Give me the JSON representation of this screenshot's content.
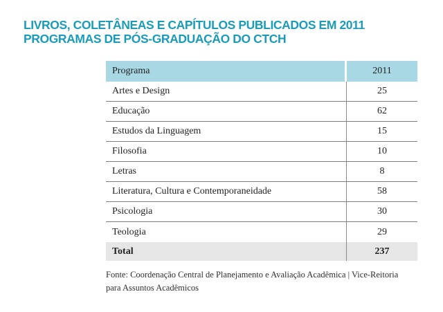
{
  "title": {
    "line1": "LIVROS, COLETÂNEAS E CAPÍTULOS PUBLICADOS EM 2011",
    "line2": "PROGRAMAS DE PÓS-GRADUAÇÃO DO CTCH"
  },
  "table": {
    "header": {
      "program": "Programa",
      "year": "2011"
    },
    "rows": [
      {
        "program": "Artes e Design",
        "value": "25"
      },
      {
        "program": "Educação",
        "value": "62"
      },
      {
        "program": "Estudos da Linguagem",
        "value": "15"
      },
      {
        "program": "Filosofia",
        "value": "10"
      },
      {
        "program": "Letras",
        "value": "8"
      },
      {
        "program": "Literatura, Cultura e Contemporaneidade",
        "value": "58"
      },
      {
        "program": "Psicologia",
        "value": "30"
      },
      {
        "program": "Teologia",
        "value": "29"
      }
    ],
    "total": {
      "label": "Total",
      "value": "237"
    }
  },
  "footer": {
    "line1": "Fonte: Coordenação Central de Planejamento e Avaliação Acadêmica | Vice-Reitoria",
    "line2": "para Assuntos Acadêmicos"
  },
  "colors": {
    "accent_teal": "#1a9bb8",
    "header_blue": "#a8d8e4",
    "total_gray": "#e6e6e6",
    "separator_gray": "#7d7d7d",
    "text": "#1f1f1f"
  }
}
